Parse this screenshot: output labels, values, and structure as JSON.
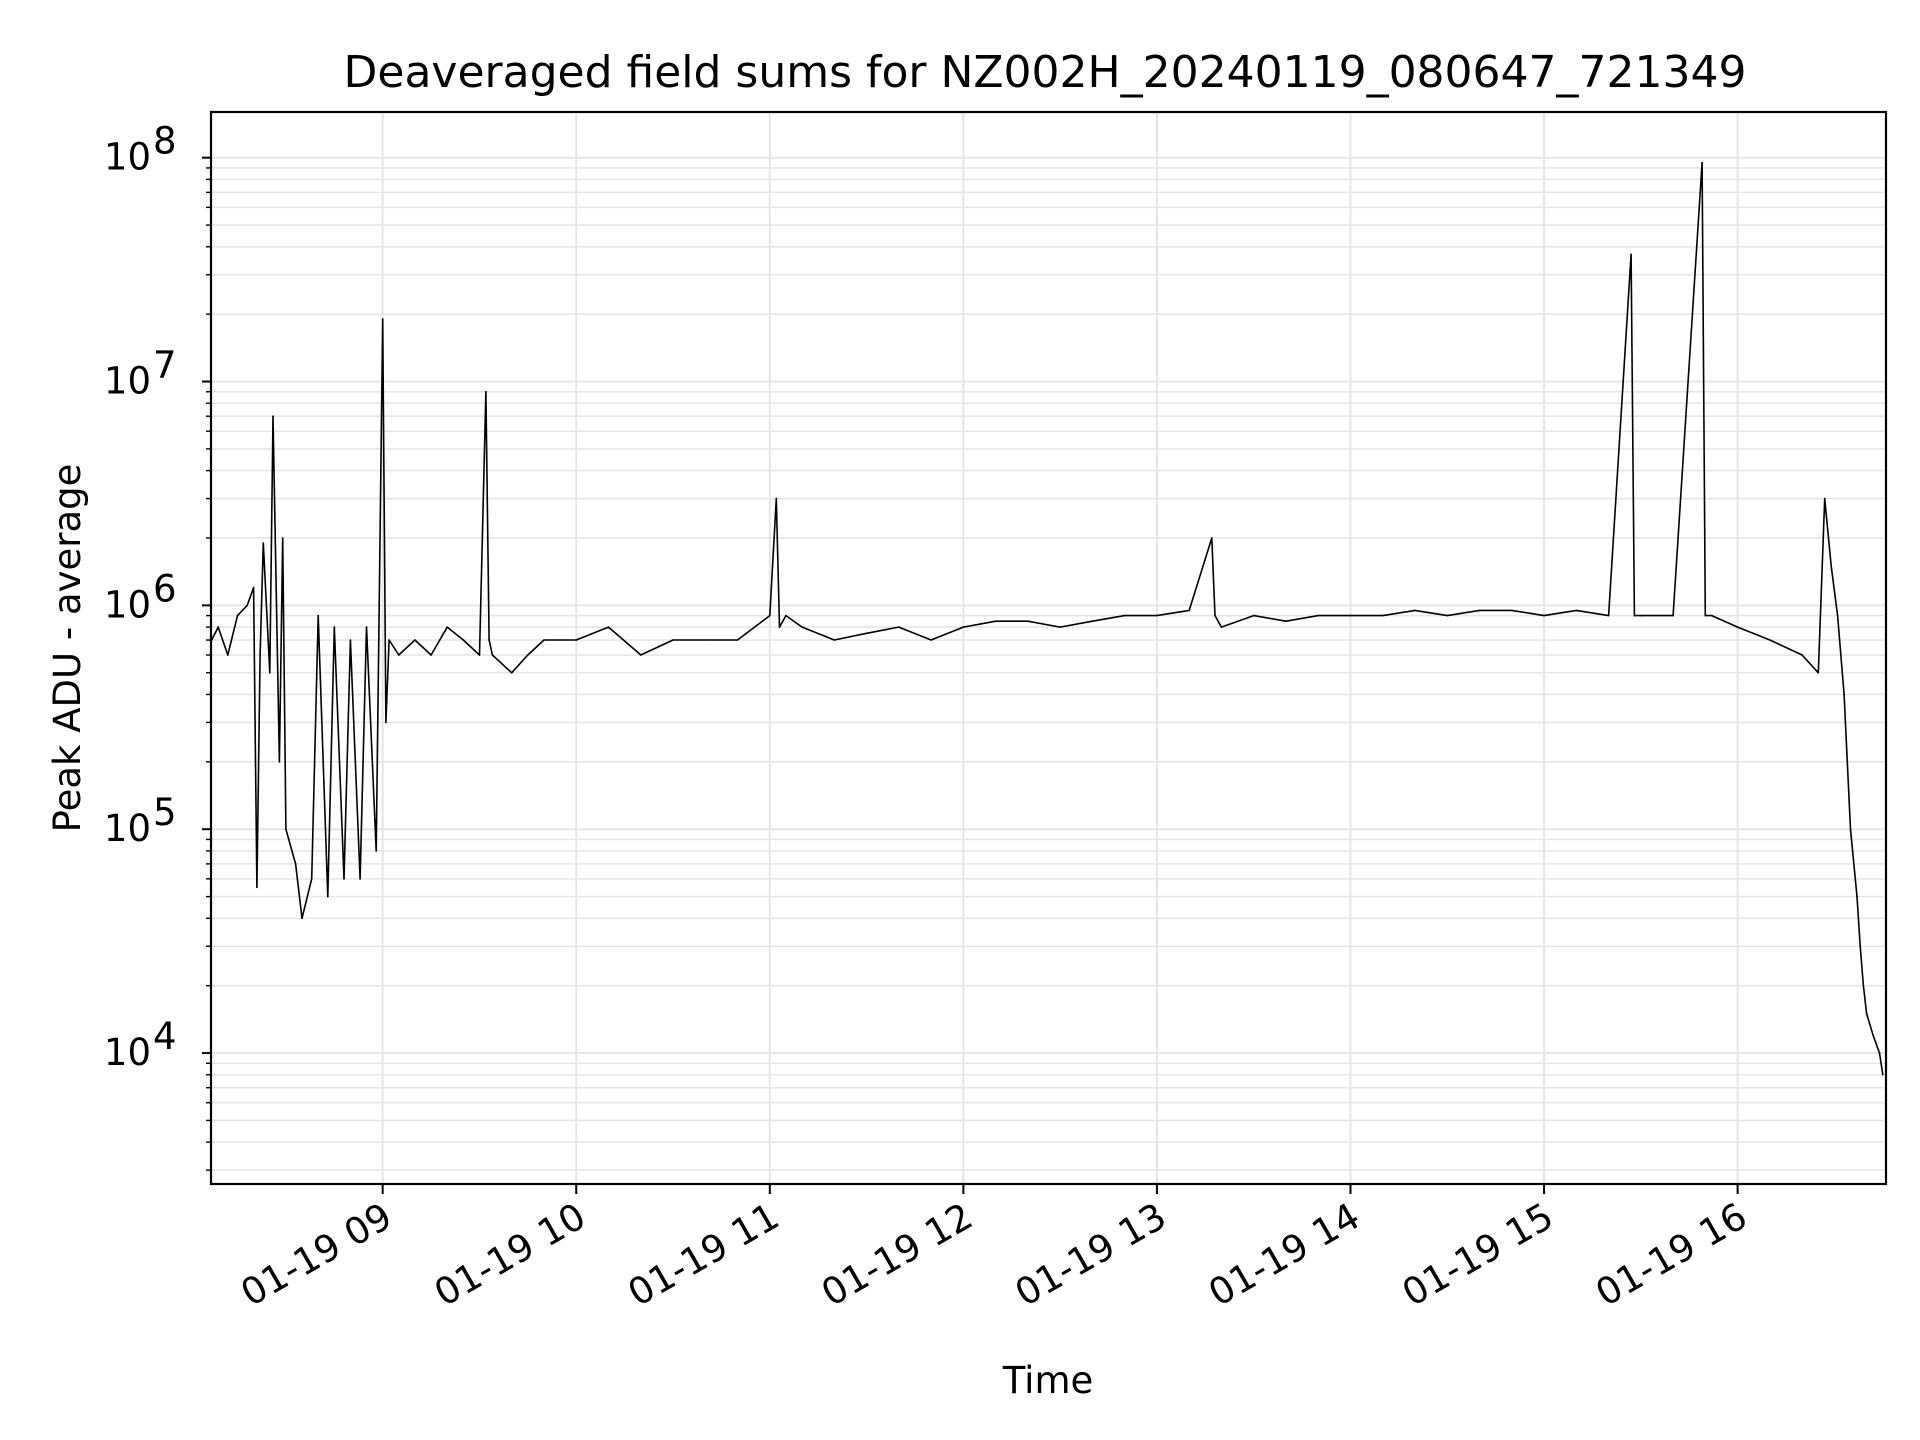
{
  "chart_data": {
    "type": "line",
    "title": "Deaveraged field sums for NZ002H_20240119_080647_721349",
    "xlabel": "Time",
    "ylabel": "Peak ADU - average",
    "y_scale": "log",
    "ylim": [
      2600,
      160000000
    ],
    "xlim": [
      "2024-01-19 08:06:47",
      "2024-01-19 16:46:00"
    ],
    "x_ticks": [
      {
        "label": "01-19 09",
        "time": "2024-01-19 09:00"
      },
      {
        "label": "01-19 10",
        "time": "2024-01-19 10:00"
      },
      {
        "label": "01-19 11",
        "time": "2024-01-19 11:00"
      },
      {
        "label": "01-19 12",
        "time": "2024-01-19 12:00"
      },
      {
        "label": "01-19 13",
        "time": "2024-01-19 13:00"
      },
      {
        "label": "01-19 14",
        "time": "2024-01-19 14:00"
      },
      {
        "label": "01-19 15",
        "time": "2024-01-19 15:00"
      },
      {
        "label": "01-19 16",
        "time": "2024-01-19 16:00"
      }
    ],
    "y_ticks": [
      {
        "base": "10",
        "exp": "4",
        "value": 10000
      },
      {
        "base": "10",
        "exp": "5",
        "value": 100000
      },
      {
        "base": "10",
        "exp": "6",
        "value": 1000000
      },
      {
        "base": "10",
        "exp": "7",
        "value": 10000000
      },
      {
        "base": "10",
        "exp": "8",
        "value": 100000000
      }
    ],
    "grid": true,
    "line_color": "#000000",
    "grid_color": "#e5e5e5",
    "series": [
      {
        "x": [
          "2024-01-19 08:07",
          "2024-01-19 08:09",
          "2024-01-19 08:12",
          "2024-01-19 08:15",
          "2024-01-19 08:18",
          "2024-01-19 08:20",
          "2024-01-19 08:21",
          "2024-01-19 08:22",
          "2024-01-19 08:23",
          "2024-01-19 08:25",
          "2024-01-19 08:26",
          "2024-01-19 08:28",
          "2024-01-19 08:29",
          "2024-01-19 08:30",
          "2024-01-19 08:33",
          "2024-01-19 08:35",
          "2024-01-19 08:38",
          "2024-01-19 08:40",
          "2024-01-19 08:43",
          "2024-01-19 08:45",
          "2024-01-19 08:48",
          "2024-01-19 08:50",
          "2024-01-19 08:53",
          "2024-01-19 08:55",
          "2024-01-19 08:58",
          "2024-01-19 09:00",
          "2024-01-19 09:01",
          "2024-01-19 09:02",
          "2024-01-19 09:05",
          "2024-01-19 09:10",
          "2024-01-19 09:15",
          "2024-01-19 09:20",
          "2024-01-19 09:25",
          "2024-01-19 09:30",
          "2024-01-19 09:32",
          "2024-01-19 09:33",
          "2024-01-19 09:34",
          "2024-01-19 09:40",
          "2024-01-19 09:45",
          "2024-01-19 09:50",
          "2024-01-19 10:00",
          "2024-01-19 10:10",
          "2024-01-19 10:20",
          "2024-01-19 10:30",
          "2024-01-19 10:40",
          "2024-01-19 10:50",
          "2024-01-19 11:00",
          "2024-01-19 11:02",
          "2024-01-19 11:03",
          "2024-01-19 11:05",
          "2024-01-19 11:10",
          "2024-01-19 11:20",
          "2024-01-19 11:30",
          "2024-01-19 11:40",
          "2024-01-19 11:50",
          "2024-01-19 12:00",
          "2024-01-19 12:10",
          "2024-01-19 12:20",
          "2024-01-19 12:30",
          "2024-01-19 12:40",
          "2024-01-19 12:50",
          "2024-01-19 13:00",
          "2024-01-19 13:10",
          "2024-01-19 13:17",
          "2024-01-19 13:18",
          "2024-01-19 13:20",
          "2024-01-19 13:30",
          "2024-01-19 13:40",
          "2024-01-19 13:50",
          "2024-01-19 14:00",
          "2024-01-19 14:10",
          "2024-01-19 14:20",
          "2024-01-19 14:30",
          "2024-01-19 14:40",
          "2024-01-19 14:50",
          "2024-01-19 15:00",
          "2024-01-19 15:10",
          "2024-01-19 15:20",
          "2024-01-19 15:27",
          "2024-01-19 15:28",
          "2024-01-19 15:30",
          "2024-01-19 15:40",
          "2024-01-19 15:49",
          "2024-01-19 15:50",
          "2024-01-19 15:52",
          "2024-01-19 16:00",
          "2024-01-19 16:10",
          "2024-01-19 16:20",
          "2024-01-19 16:25",
          "2024-01-19 16:27",
          "2024-01-19 16:29",
          "2024-01-19 16:31",
          "2024-01-19 16:33",
          "2024-01-19 16:35",
          "2024-01-19 16:37",
          "2024-01-19 16:38",
          "2024-01-19 16:39",
          "2024-01-19 16:40",
          "2024-01-19 16:42",
          "2024-01-19 16:44",
          "2024-01-19 16:45"
        ],
        "y": [
          700000,
          800000,
          600000,
          900000,
          1000000,
          1200000,
          55000,
          600000,
          1900000,
          500000,
          7000000,
          200000,
          2000000,
          100000,
          70000,
          40000,
          60000,
          900000,
          50000,
          800000,
          60000,
          700000,
          60000,
          800000,
          80000,
          19000000,
          300000,
          700000,
          600000,
          700000,
          600000,
          800000,
          700000,
          600000,
          9000000,
          700000,
          600000,
          500000,
          600000,
          700000,
          700000,
          800000,
          600000,
          700000,
          700000,
          700000,
          900000,
          3000000,
          800000,
          900000,
          800000,
          700000,
          750000,
          800000,
          700000,
          800000,
          850000,
          850000,
          800000,
          850000,
          900000,
          900000,
          950000,
          2000000,
          900000,
          800000,
          900000,
          850000,
          900000,
          900000,
          900000,
          950000,
          900000,
          950000,
          950000,
          900000,
          950000,
          900000,
          37000000,
          900000,
          900000,
          900000,
          95000000,
          900000,
          900000,
          800000,
          700000,
          600000,
          500000,
          3000000,
          1500000,
          900000,
          400000,
          100000,
          50000,
          30000,
          20000,
          15000,
          12000,
          10000,
          8000
        ]
      }
    ]
  }
}
